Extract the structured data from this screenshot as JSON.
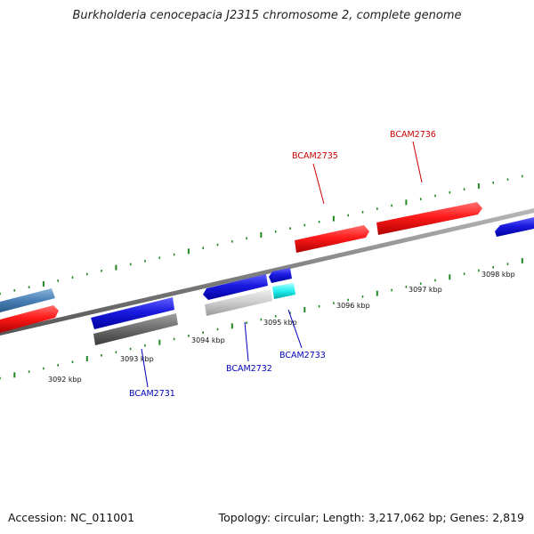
{
  "title": "Burkholderia cenocepacia J2315 chromosome 2, complete genome",
  "footer": {
    "accession": "Accession: NC_011001",
    "summary": "Topology: circular; Length: 3,217,062 bp; Genes: 2,819"
  },
  "colors": {
    "strand_plus": "#ee1111",
    "strand_minus": "#1a1adc",
    "backbone": "#808080",
    "ticks": "#228822",
    "label_plus": "#cc0000",
    "label_minus": "#0000bb"
  },
  "scale": {
    "tick_labels": [
      "3092 kbp",
      "3093 kbp",
      "3094 kbp",
      "3095 kbp",
      "3096 kbp",
      "3097 kbp",
      "3098 kbp"
    ]
  },
  "gene_labels": [
    {
      "name": "BCAM2735",
      "strand": "plus"
    },
    {
      "name": "BCAM2736",
      "strand": "plus"
    },
    {
      "name": "BCAM2731",
      "strand": "minus"
    },
    {
      "name": "BCAM2732",
      "strand": "minus"
    },
    {
      "name": "BCAM2733",
      "strand": "minus"
    }
  ]
}
